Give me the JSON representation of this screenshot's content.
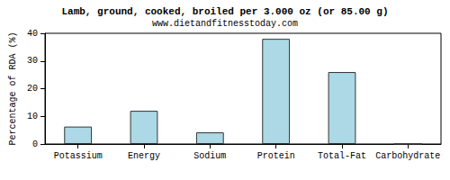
{
  "chart_data": {
    "type": "bar",
    "title": "Lamb, ground, cooked, broiled per 3.000 oz (or 85.00 g)",
    "subtitle": "www.dietandfitnesstoday.com",
    "y_label": "Percentage of RDA (%)",
    "categories": [
      "Potassium",
      "Energy",
      "Sodium",
      "Protein",
      "Total-Fat",
      "Carbohydrate"
    ],
    "values": [
      6.3,
      12,
      4.2,
      38,
      26,
      0
    ],
    "color": "#add8e6",
    "ylim": [
      0,
      40
    ],
    "yticks": [
      0,
      10,
      20,
      30,
      40
    ],
    "grid": false
  }
}
